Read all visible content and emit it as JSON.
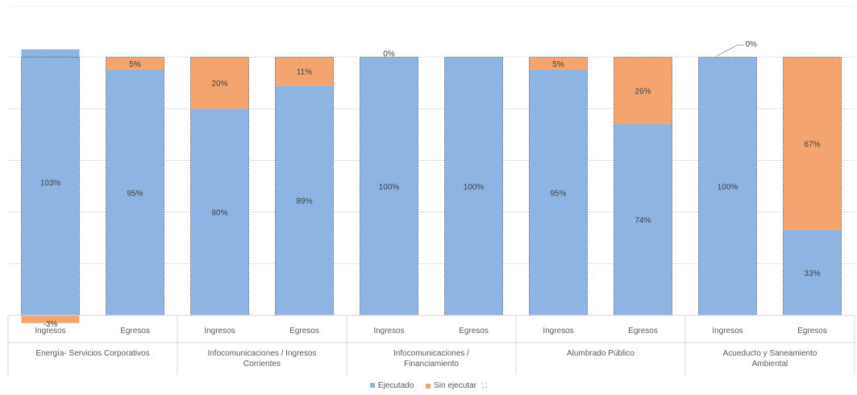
{
  "chart_data": {
    "type": "bar",
    "stacked": true,
    "ylim": [
      -6,
      107
    ],
    "grid": true,
    "legend_position": "bottom",
    "groups": [
      {
        "label": "Energía- Servicios Corporativos",
        "categories": [
          "Ingresos",
          "Egresos"
        ]
      },
      {
        "label": "Infocomunicaciones / Ingresos Corrientes",
        "categories": [
          "Ingresos",
          "Egresos"
        ]
      },
      {
        "label": "Infocomunicaciones / Financiamiento",
        "categories": [
          "Ingresos",
          "Egresos"
        ]
      },
      {
        "label": "Alumbrado Público",
        "categories": [
          "Ingresos",
          "Egresos"
        ]
      },
      {
        "label": "Acueducto y Saneamiento Ambiental",
        "categories": [
          "Ingresos",
          "Egresos"
        ]
      }
    ],
    "categories": [
      "Ingresos",
      "Egresos",
      "Ingresos",
      "Egresos",
      "Ingresos",
      "Egresos",
      "Ingresos",
      "Egresos",
      "Ingresos",
      "Egresos"
    ],
    "series": [
      {
        "name": "Ejecutado",
        "color": "#8DB4E2",
        "values": [
          103,
          95,
          80,
          89,
          100,
          100,
          95,
          74,
          100,
          33
        ],
        "labels": [
          "103%",
          "95%",
          "80%",
          "89%",
          "100%",
          "100%",
          "95%",
          "74%",
          "100%",
          "33%"
        ]
      },
      {
        "name": "Sin ejecutar",
        "color": "#F4A46E",
        "values": [
          -3,
          5,
          20,
          11,
          0,
          0,
          5,
          26,
          0,
          67
        ],
        "labels": [
          "-3%",
          "5%",
          "20%",
          "11%",
          "0%",
          "",
          "5%",
          "26%",
          "0%",
          "67%"
        ]
      }
    ]
  },
  "legend": {
    "items": [
      {
        "label": "Ejecutado",
        "color": "#8DB4E2"
      },
      {
        "label": "Sin ejecutar",
        "color": "#F4A46E"
      }
    ],
    "extra_icon": "resize-handle-icon"
  }
}
